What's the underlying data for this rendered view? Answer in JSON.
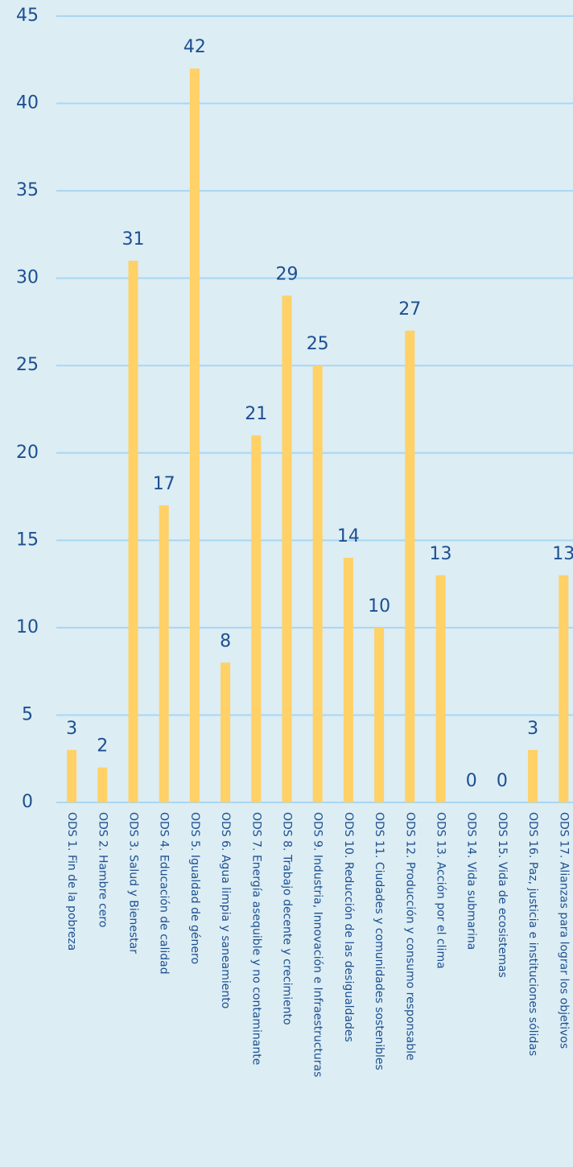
{
  "chart_data": {
    "type": "bar",
    "categories": [
      "ODS 1. Fin de la pobreza",
      "ODS 2. Hambre cero",
      "ODS 3. Salud y Bienestar",
      "ODS 4. Educación de calidad",
      "ODS 5. Igualdad de género",
      "ODS 6. Agua limpia y saneamiento",
      "ODS 7. Energía asequible y no contaminante",
      "ODS 8. Trabajo decente y crecimiento",
      "ODS 9. Industria, Innovación e Infraestructuras",
      "ODS 10. Reducción de las desigualdades",
      "ODS 11. Ciudades y comunidades sostenibles",
      "ODS 12. Producción y consumo responsable",
      "ODS 13. Acción por el clima",
      "ODS 14. Vida submarina",
      "ODS 15. Vida de ecosistemas",
      "ODS 16. Paz, justicia e instituciones sólidas",
      "ODS 17. Alianzas para lograr los objetivos"
    ],
    "values": [
      3,
      2,
      31,
      17,
      42,
      8,
      21,
      29,
      25,
      14,
      10,
      27,
      13,
      0,
      0,
      3,
      13
    ],
    "color": "#ffd166",
    "ylim": [
      0,
      45
    ],
    "yticks": [
      0,
      5,
      10,
      15,
      20,
      25,
      30,
      35,
      40,
      45
    ],
    "grid": true
  }
}
